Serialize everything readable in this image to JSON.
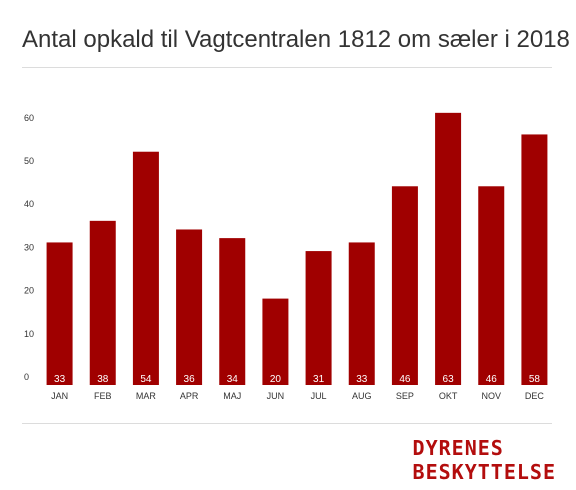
{
  "title": "Antal opkald til Vagtcentralen 1812 om sæler i 2018",
  "brand": {
    "line1": "DYRENES",
    "line2": "BESKYTTELSE",
    "color": "#b30d0d"
  },
  "colors": {
    "bar": "#a00000",
    "bar_label": "#ffffff",
    "axis_text": "#333333"
  },
  "chart_data": {
    "type": "bar",
    "categories": [
      "JAN",
      "FEB",
      "MAR",
      "APR",
      "MAJ",
      "JUN",
      "JUL",
      "AUG",
      "SEP",
      "OKT",
      "NOV",
      "DEC"
    ],
    "values": [
      33,
      38,
      54,
      36,
      34,
      20,
      31,
      33,
      46,
      63,
      46,
      58
    ],
    "yticks": [
      0,
      10,
      20,
      30,
      40,
      50,
      60
    ],
    "ylim": [
      0,
      70
    ],
    "xlabel": "",
    "ylabel": "",
    "grid": false,
    "data_labels": "inside-bottom"
  }
}
